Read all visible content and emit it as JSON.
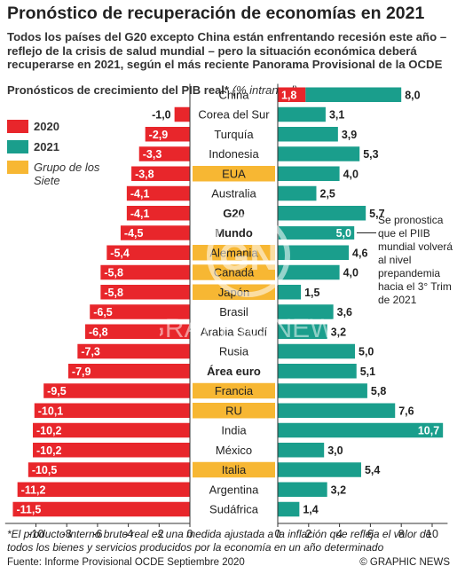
{
  "header": {
    "title": "Pronóstico de recuperación de economías en 2021",
    "subtitle": "Todos los países del G20 excepto China están enfrentando recesión este año – reflejo de la crisis de salud mundial – pero la situación económica deberá recuperarse en 2021, según el más reciente Panorama Provisional de la OCDE"
  },
  "legend": {
    "title": "Pronósticos de crecimiento del PIB real*",
    "title_note": "(% intranual)",
    "items": [
      {
        "label": "2020",
        "color": "#e8262b"
      },
      {
        "label": "2021",
        "color": "#1a9e8c"
      },
      {
        "label": "Grupo de los Siete",
        "color": "#f7b733"
      }
    ]
  },
  "chart_data": {
    "type": "bar",
    "categories": [
      "China",
      "Corea del Sur",
      "Turquía",
      "Indonesia",
      "EUA",
      "Australia",
      "G20",
      "Mundo",
      "Alemania",
      "Canadá",
      "Japón",
      "Brasil",
      "Arabia Saudí",
      "Rusia",
      "Área euro",
      "Francia",
      "RU",
      "India",
      "México",
      "Italia",
      "Argentina",
      "Sudáfrica"
    ],
    "bold_categories": [
      "G20",
      "Mundo",
      "Área euro"
    ],
    "g7_categories": [
      "EUA",
      "Alemania",
      "Canadá",
      "Japón",
      "Francia",
      "RU",
      "Italia"
    ],
    "series": [
      {
        "name": "2020",
        "values": [
          1.8,
          -1.0,
          -2.9,
          -3.3,
          -3.8,
          -4.1,
          -4.1,
          -4.5,
          -5.4,
          -5.8,
          -5.8,
          -6.5,
          -6.8,
          -7.3,
          -7.9,
          -9.5,
          -10.1,
          -10.2,
          -10.2,
          -10.5,
          -11.2,
          -11.5
        ]
      },
      {
        "name": "2021",
        "values": [
          8.0,
          3.1,
          3.9,
          5.3,
          4.0,
          2.5,
          5.7,
          5.0,
          4.6,
          4.0,
          1.5,
          3.6,
          3.2,
          5.0,
          5.1,
          5.8,
          7.6,
          10.7,
          3.0,
          5.4,
          3.2,
          1.4
        ]
      }
    ],
    "labels_2020": [
      "1,8",
      "-1,0",
      "-2,9",
      "-3,3",
      "-3,8",
      "-4,1",
      "-4,1",
      "-4,5",
      "-5,4",
      "-5,8",
      "-5,8",
      "-6,5",
      "-6,8",
      "-7,3",
      "-7,9",
      "-9,5",
      "-10,1",
      "-10,2",
      "-10,2",
      "-10,5",
      "-11,2",
      "-11,5"
    ],
    "labels_2021": [
      "8,0",
      "3,1",
      "3,9",
      "5,3",
      "4,0",
      "2,5",
      "5,7",
      "5,0",
      "4,6",
      "4,0",
      "1,5",
      "3,6",
      "3,2",
      "5,0",
      "5,1",
      "5,8",
      "7,6",
      "10,7",
      "3,0",
      "5,4",
      "3,2",
      "1,4"
    ],
    "left_axis": {
      "ticks": [
        -10,
        -8,
        -6,
        -4,
        -2,
        0
      ],
      "tick_labels": [
        "-10",
        "-8",
        "-6",
        "-4",
        "-2",
        "0"
      ],
      "range": [
        -12,
        0
      ]
    },
    "right_axis": {
      "ticks": [
        0,
        2,
        4,
        6,
        8,
        10
      ],
      "tick_labels": [
        "0",
        "2",
        "4",
        "6",
        "8",
        "10"
      ],
      "range": [
        0,
        11
      ]
    }
  },
  "annotation": "Se pronostica que el PIIB mundial volverá al nivel prepandemia hacia el 3° Trim de 2021",
  "footnote": "*El producto interno bruto real es una medida ajustada a la inflación que refleja el valor de todos los bienes y servicios producidos por la economía en un año determinado",
  "source": "Fuente: Informe Provisional OCDE Septiembre 2020",
  "credit": "© GRAPHIC NEWS",
  "watermark": {
    "big": "GN",
    "text": "GRAPHIC NEWS"
  },
  "colors": {
    "red": "#e8262b",
    "teal": "#1a9e8c",
    "g7": "#f7b733",
    "white": "#ffffff"
  }
}
